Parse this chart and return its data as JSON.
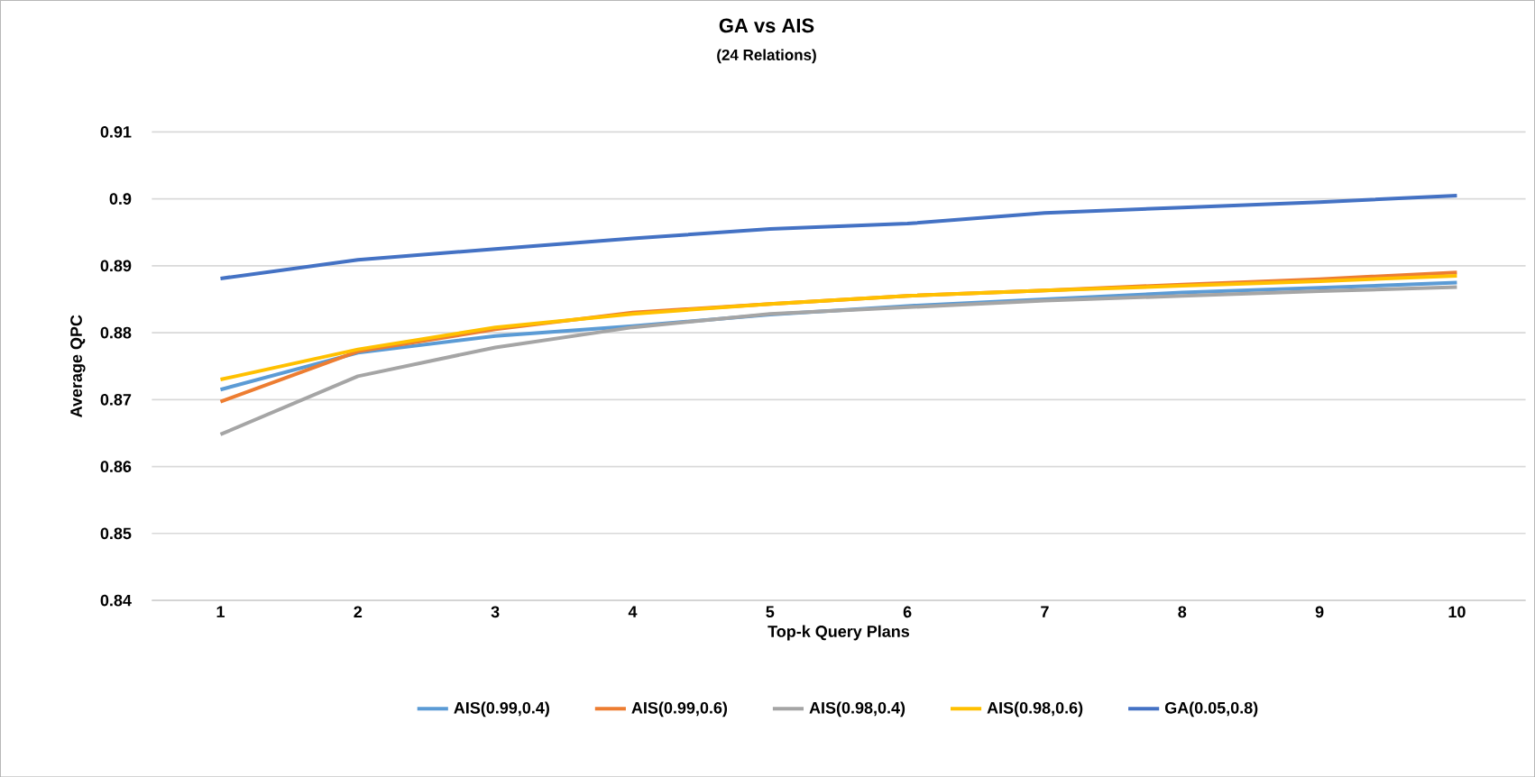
{
  "chart_data": {
    "type": "line",
    "title": "GA vs AIS",
    "subtitle": "(24 Relations)",
    "xlabel": "Top-k Query Plans",
    "ylabel": "Average QPC",
    "categories": [
      "1",
      "2",
      "3",
      "4",
      "5",
      "6",
      "7",
      "8",
      "9",
      "10"
    ],
    "series": [
      {
        "name": "AIS(0.99,0.4)",
        "color": "#5b9bd5",
        "values": [
          0.8715,
          0.877,
          0.8795,
          0.881,
          0.8827,
          0.884,
          0.885,
          0.886,
          0.8867,
          0.8875
        ]
      },
      {
        "name": "AIS(0.99,0.6)",
        "color": "#ed7d31",
        "values": [
          0.8697,
          0.8772,
          0.8805,
          0.883,
          0.8843,
          0.8855,
          0.8863,
          0.8872,
          0.888,
          0.889
        ]
      },
      {
        "name": "AIS(0.98,0.4)",
        "color": "#a5a5a5",
        "values": [
          0.8648,
          0.8735,
          0.8778,
          0.8808,
          0.8828,
          0.8838,
          0.8848,
          0.8855,
          0.8862,
          0.8868
        ]
      },
      {
        "name": "AIS(0.98,0.6)",
        "color": "#ffc000",
        "values": [
          0.873,
          0.8775,
          0.8808,
          0.8828,
          0.8843,
          0.8855,
          0.8863,
          0.887,
          0.8877,
          0.8885
        ]
      },
      {
        "name": "GA(0.05,0.8)",
        "color": "#4472c4",
        "values": [
          0.8881,
          0.8909,
          0.8925,
          0.8941,
          0.8955,
          0.8963,
          0.8979,
          0.8987,
          0.8995,
          0.9005
        ]
      }
    ],
    "ylim": [
      0.84,
      0.91
    ],
    "yticks": [
      0.84,
      0.85,
      0.86,
      0.87,
      0.88,
      0.89,
      0.9,
      0.91
    ],
    "grid": "y",
    "legend": "bottom",
    "marker": "none",
    "line_style": "solid"
  }
}
